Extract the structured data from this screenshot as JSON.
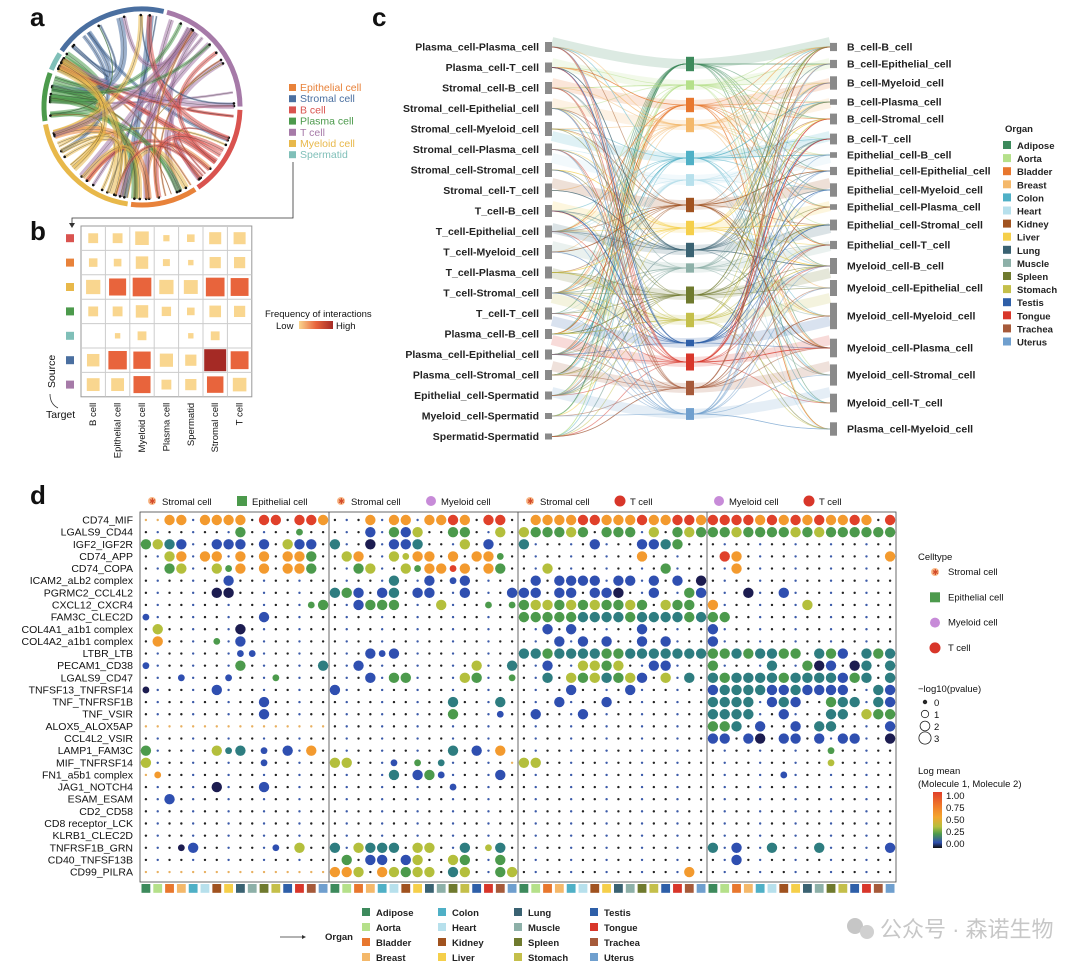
{
  "panels": {
    "a": "a",
    "b": "b",
    "c": "c",
    "d": "d"
  },
  "colors": {
    "celltypes": {
      "Epithelial cell": "#e8823a",
      "Stromal cell": "#4a6fa0",
      "B cell": "#d9534f",
      "Plasma cell": "#4c9a4c",
      "T cell": "#a67aa8",
      "Myeloid cell": "#e8b84a",
      "Spermatid": "#7fbfb8"
    },
    "organs": {
      "Adipose": "#3d8a5c",
      "Aorta": "#b5e08a",
      "Bladder": "#e8772e",
      "Breast": "#f4b86a",
      "Colon": "#4fb0c6",
      "Heart": "#b7e0ec",
      "Kidney": "#a0521f",
      "Liver": "#f5cf4a",
      "Lung": "#3a6272",
      "Muscle": "#8db0a8",
      "Spleen": "#6f7a2e",
      "Stomach": "#c4bf4a",
      "Testis": "#2e5fa8",
      "Tongue": "#d8362a",
      "Trachea": "#a65a3a",
      "Uterus": "#6f9fce"
    },
    "logmean": {
      "k": "#1c1c50",
      "b": "#2f4fb0",
      "t": "#2e7d80",
      "g": "#4c9a4c",
      "y": "#b4bf3c",
      "o": "#f39a2e",
      "r": "#e0402a"
    }
  },
  "watermark": "公众号 · 森诺生物",
  "chart_data": [
    {
      "id": "a",
      "type": "chord",
      "legend": [
        "Epithelial cell",
        "Stromal cell",
        "B cell",
        "Plasma cell",
        "T cell",
        "Myeloid cell",
        "Spermatid"
      ],
      "sectors": [
        {
          "name": "Stromal cell",
          "share": 0.19
        },
        {
          "name": "T cell",
          "share": 0.21
        },
        {
          "name": "B cell",
          "share": 0.15
        },
        {
          "name": "Epithelial cell",
          "share": 0.11
        },
        {
          "name": "Myeloid cell",
          "share": 0.2
        },
        {
          "name": "Plasma cell",
          "share": 0.08
        },
        {
          "name": "Spermatid",
          "share": 0.03
        }
      ]
    },
    {
      "id": "b",
      "type": "heatmap",
      "xlabel": "Target",
      "ylabel": "Source",
      "columns": [
        "B cell",
        "Epithelial cell",
        "Myeloid cell",
        "Plasma cell",
        "Spermatid",
        "Stromal cell",
        "T cell"
      ],
      "rows": [
        "B cell",
        "Epithelial cell",
        "Myeloid cell",
        "Plasma cell",
        "Spermatid",
        "Stromal cell",
        "T cell"
      ],
      "values": [
        [
          0.2,
          0.2,
          0.38,
          0.08,
          0.12,
          0.3,
          0.3
        ],
        [
          0.15,
          0.12,
          0.32,
          0.1,
          0.06,
          0.26,
          0.26
        ],
        [
          0.42,
          0.6,
          0.72,
          0.42,
          0.4,
          0.72,
          0.66
        ],
        [
          0.2,
          0.2,
          0.32,
          0.18,
          0.12,
          0.28,
          0.26
        ],
        [
          0,
          0.06,
          0.16,
          0,
          0.06,
          0.16,
          0
        ],
        [
          0.32,
          0.7,
          0.62,
          0.36,
          0.26,
          1.0,
          0.66
        ],
        [
          0.34,
          0.34,
          0.6,
          0.2,
          0.26,
          0.56,
          0.38
        ]
      ],
      "legend_title": "Frequency of interactions",
      "legend_low": "Low",
      "legend_high": "High"
    },
    {
      "id": "c",
      "type": "sankey",
      "legend_title": "Organ",
      "left_nodes": [
        {
          "name": "Plasma_cell-Plasma_cell",
          "size": 3
        },
        {
          "name": "Plasma_cell-T_cell",
          "size": 3
        },
        {
          "name": "Stromal_cell-B_cell",
          "size": 4
        },
        {
          "name": "Stromal_cell-Epithelial_cell",
          "size": 5
        },
        {
          "name": "Stromal_cell-Myeloid_cell",
          "size": 5
        },
        {
          "name": "Stromal_cell-Plasma_cell",
          "size": 4
        },
        {
          "name": "Stromal_cell-Stromal_cell",
          "size": 5
        },
        {
          "name": "Stromal_cell-T_cell",
          "size": 5
        },
        {
          "name": "T_cell-B_cell",
          "size": 4
        },
        {
          "name": "T_cell-Epithelial_cell",
          "size": 4
        },
        {
          "name": "T_cell-Myeloid_cell",
          "size": 5
        },
        {
          "name": "T_cell-Plasma_cell",
          "size": 4
        },
        {
          "name": "T_cell-Stromal_cell",
          "size": 4
        },
        {
          "name": "T_cell-T_cell",
          "size": 4
        },
        {
          "name": "Plasma_cell-B_cell",
          "size": 3
        },
        {
          "name": "Plasma_cell-Epithelial_cell",
          "size": 3
        },
        {
          "name": "Plasma_cell-Stromal_cell",
          "size": 3
        },
        {
          "name": "Epithelial_cell-Spermatid",
          "size": 2
        },
        {
          "name": "Myeloid_cell-Spermatid",
          "size": 1
        },
        {
          "name": "Spermatid-Spermatid",
          "size": 1
        }
      ],
      "organs": [
        "Adipose",
        "Aorta",
        "Bladder",
        "Breast",
        "Colon",
        "Heart",
        "Kidney",
        "Liver",
        "Lung",
        "Muscle",
        "Spleen",
        "Stomach",
        "Testis",
        "Tongue",
        "Trachea",
        "Uterus"
      ],
      "organ_sizes": [
        4,
        2,
        4,
        4,
        4,
        3,
        4,
        4,
        4,
        2,
        5,
        4,
        1,
        5,
        4,
        3
      ],
      "right_nodes": [
        {
          "name": "B_cell-B_cell",
          "size": 2
        },
        {
          "name": "B_cell-Epithelial_cell",
          "size": 2
        },
        {
          "name": "B_cell-Myeloid_cell",
          "size": 4
        },
        {
          "name": "B_cell-Plasma_cell",
          "size": 1
        },
        {
          "name": "B_cell-Stromal_cell",
          "size": 3
        },
        {
          "name": "B_cell-T_cell",
          "size": 3
        },
        {
          "name": "Epithelial_cell-B_cell",
          "size": 1
        },
        {
          "name": "Epithelial_cell-Epithelial_cell",
          "size": 2
        },
        {
          "name": "Epithelial_cell-Myeloid_cell",
          "size": 4
        },
        {
          "name": "Epithelial_cell-Plasma_cell",
          "size": 1
        },
        {
          "name": "Epithelial_cell-Stromal_cell",
          "size": 3
        },
        {
          "name": "Epithelial_cell-T_cell",
          "size": 2
        },
        {
          "name": "Myeloid_cell-B_cell",
          "size": 5
        },
        {
          "name": "Myeloid_cell-Epithelial_cell",
          "size": 5
        },
        {
          "name": "Myeloid_cell-Myeloid_cell",
          "size": 9
        },
        {
          "name": "Myeloid_cell-Plasma_cell",
          "size": 6
        },
        {
          "name": "Myeloid_cell-Stromal_cell",
          "size": 7
        },
        {
          "name": "Myeloid_cell-T_cell",
          "size": 6
        },
        {
          "name": "Plasma_cell-Myeloid_cell",
          "size": 4
        }
      ]
    },
    {
      "id": "d",
      "type": "scatter",
      "subtype": "dotplot",
      "groups": [
        {
          "sender": "Stromal cell",
          "receiver": "Epithelial cell"
        },
        {
          "sender": "Stromal cell",
          "receiver": "Myeloid cell"
        },
        {
          "sender": "Stromal cell",
          "receiver": "T cell"
        },
        {
          "sender": "Myeloid cell",
          "receiver": "T cell"
        }
      ],
      "celltype_legend": {
        "title": "Celltype",
        "items": [
          "Stromal cell",
          "Epithelial cell",
          "Myeloid cell",
          "T cell"
        ]
      },
      "size_legend": {
        "title": "−log10(pvalue)",
        "values": [
          "0",
          "1",
          "2",
          "3"
        ]
      },
      "color_legend": {
        "title": "Log mean",
        "subtitle": "(Molecule 1, Molecule 2)",
        "ticks": [
          "1.00",
          "0.75",
          "0.50",
          "0.25",
          "0.00"
        ]
      },
      "organ_legend": {
        "title": "Organ",
        "items": [
          "Adipose",
          "Aorta",
          "Bladder",
          "Breast",
          "Colon",
          "Heart",
          "Kidney",
          "Liver",
          "Lung",
          "Muscle",
          "Spleen",
          "Stomach",
          "Testis",
          "Tongue",
          "Trachea",
          "Uterus"
        ]
      },
      "encoding": "per column: '.' p~0 dark, ',' p~0 light, lowercase = -log10p~1-2, uppercase = -log10p~3; letter = log mean (k 0.0, b 0.1, t 0.2, g 0.3, y 0.4, o 0.55, r 0.8)",
      "rows": [
        {
          "pair": "CD74_MIF",
          "cells": ",,OO.OOOO.RR.RRO|...O.OO.OORO.RR.|.OOOORROOOROORRO|RRRROROROROORO.R"
        },
        {
          "pair": "LGALS9_CD44",
          "cells": "........G....g..|...B.GBY..GG..Y.|YGGGYG.GGG.Y.GYG|GGYGGGGYGYGGGGGG"
        },
        {
          "pair": "IGF2_IGF2R",
          "cells": "GYTB..BBB.B.YBB.|T..K.BBT...Y.B..|T.....B...BBTG..|................"
        },
        {
          "pair": "CD74_APP",
          "cells": "..YO.OO.O.O.OOG.|.YO..YyOO.O.OOg.|..........O.....|.RO............O"
        },
        {
          "pair": "CD74_COPA",
          "cells": "..GY..YgO.O.OOG.|..GY..YgOOrO.OG.|..Y.........G...|..O............."
        },
        {
          "pair": "ICAM2_aLb2 complex",
          "cells": ".......B........|.....T..B.bB....|.B.BBBB.BB.B.B.K|................"
        },
        {
          "pair": "PGRMC2_CCL4L2",
          "cells": "......KK........|TGB.BT.BB..B...B|BB.BB.BBK..B..GB|...K..B........."
        },
        {
          "pair": "CXCL12_CXCR4",
          "cells": "..............gG|..BGGG...Y...g.g|GYYGYGYGGYG.YGG.|O.......Y......."
        },
        {
          "pair": "FAM3C_CLEC2D",
          "cells": "b.........B.....|................|GGGGGTTTTGTTTTGT|GG.............."
        },
        {
          "pair": "COL4A1_a1b1 complex",
          "cells": ".Y......K.......|................|..B.B.....B.....|B..............."
        },
        {
          "pair": "COL4A2_a1b1 complex",
          "cells": ".O....g.B.......|................|...B.B.B..B.B...|B..............."
        },
        {
          "pair": "LTBR_LTB",
          "cells": "........bb......|...BbB..........|TTGTTTTGGTTTTTTT|GGTGTTGG.TGB.TGT"
        },
        {
          "pair": "PECAM1_CD38",
          "cells": "b.......G......T|..B.........Y..T|..B..YYGY..BB...|G....T..GKB.KT.T"
        },
        {
          "pair": "LGALS9_CD47",
          "cells": "...b...b...g....|...B.GG....YG..g|..T.YGYTGYB.Y.T.|TGTTTTGTTTTBGT.T"
        },
        {
          "pair": "TNFSF13_TNFRSF14",
          "cells": "k.....B.........|B...............|....B....B......|BTTTTBBTBBBB..TB"
        },
        {
          "pair": "TNF_TNFRSF1B",
          "cells": "..........B.....|..........T...T.|...B...B........|TTTT.BTB..GTT.TB"
        },
        {
          "pair": "TNF_VSIR",
          "cells": "..........B.....|..........G...b.|.B...B..........|TTTT..B...TT.YGG"
        },
        {
          "pair": "ALOX5_ALOX5AP",
          "cells": ",,,,,,,,,,,,,,,,|................|................|GGT.B..B.TT....B"
        },
        {
          "pair": "CCL4L2_VSIR",
          "cells": "................|................|................|BB.BK.BB.B.BB..K"
        },
        {
          "pair": "LAMP1_FAM3C",
          "cells": "G.....YtT.b.B.O.|..........T.B.O.|................|..........g....."
        },
        {
          "pair": "MIF_TNFRSF14",
          "cells": "Y.........b.....|YY...b.g.t.....,|YY..............|..........y....."
        },
        {
          "pair": "FN1_a5b1 complex",
          "cells": ",o..............|.....T.BGb....B.|................|......b........."
        },
        {
          "pair": "JAG1_NOTCH4",
          "cells": "......K...B.....|..........b.....|................|................"
        },
        {
          "pair": "ESAM_ESAM",
          "cells": "..B.............|................|................|................"
        },
        {
          "pair": "CD2_CD58",
          "cells": "................|................|................|................"
        },
        {
          "pair": "CD8 receptor_LCK",
          "cells": "................|................|................|................"
        },
        {
          "pair": "KLRB1_CLEC2D",
          "cells": "................|................|................|................"
        },
        {
          "pair": "TNFRSF1B_GRN",
          "cells": "...kB......b.Y..|T.YTTT.YY..T.yT.|................|T.B..T...T.....B"
        },
        {
          "pair": "CD40_TNFSF13B",
          "cells": "................|.G.BB.BY..YG..G.|................|..B............."
        },
        {
          "pair": "CD99_PILRA",
          "cells": ",,,,,,,,,,,,,,,,|OOY.OYGYY.TY..GY|..............O.|................"
        }
      ]
    }
  ]
}
